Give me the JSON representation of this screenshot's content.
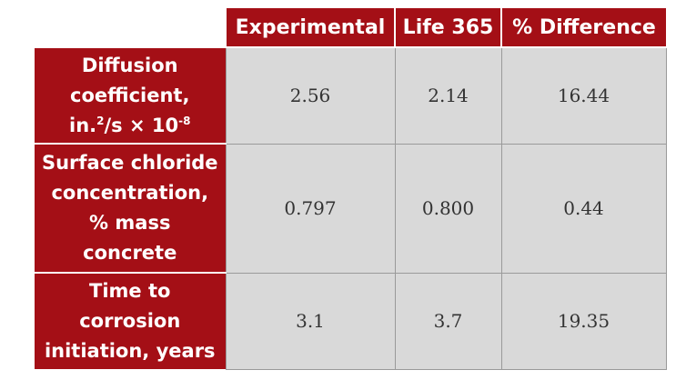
{
  "table": {
    "columns": [
      "Experimental",
      "Life 365",
      "% Difference"
    ],
    "rows": [
      {
        "label_lines": [
          "Diffusion",
          "coefficient,"
        ],
        "label_unit": {
          "base": "in.",
          "exp1": "2",
          "mid": "/s × 10",
          "exp2": "-8"
        },
        "values": [
          "2.56",
          "2.14",
          "16.44"
        ]
      },
      {
        "label_lines": [
          "Surface chloride",
          "concentration,",
          "% mass",
          "concrete"
        ],
        "values": [
          "0.797",
          "0.800",
          "0.44"
        ]
      },
      {
        "label_lines": [
          "Time to",
          "corrosion",
          "initiation, years"
        ],
        "values": [
          "3.1",
          "3.7",
          "19.35"
        ]
      }
    ]
  }
}
